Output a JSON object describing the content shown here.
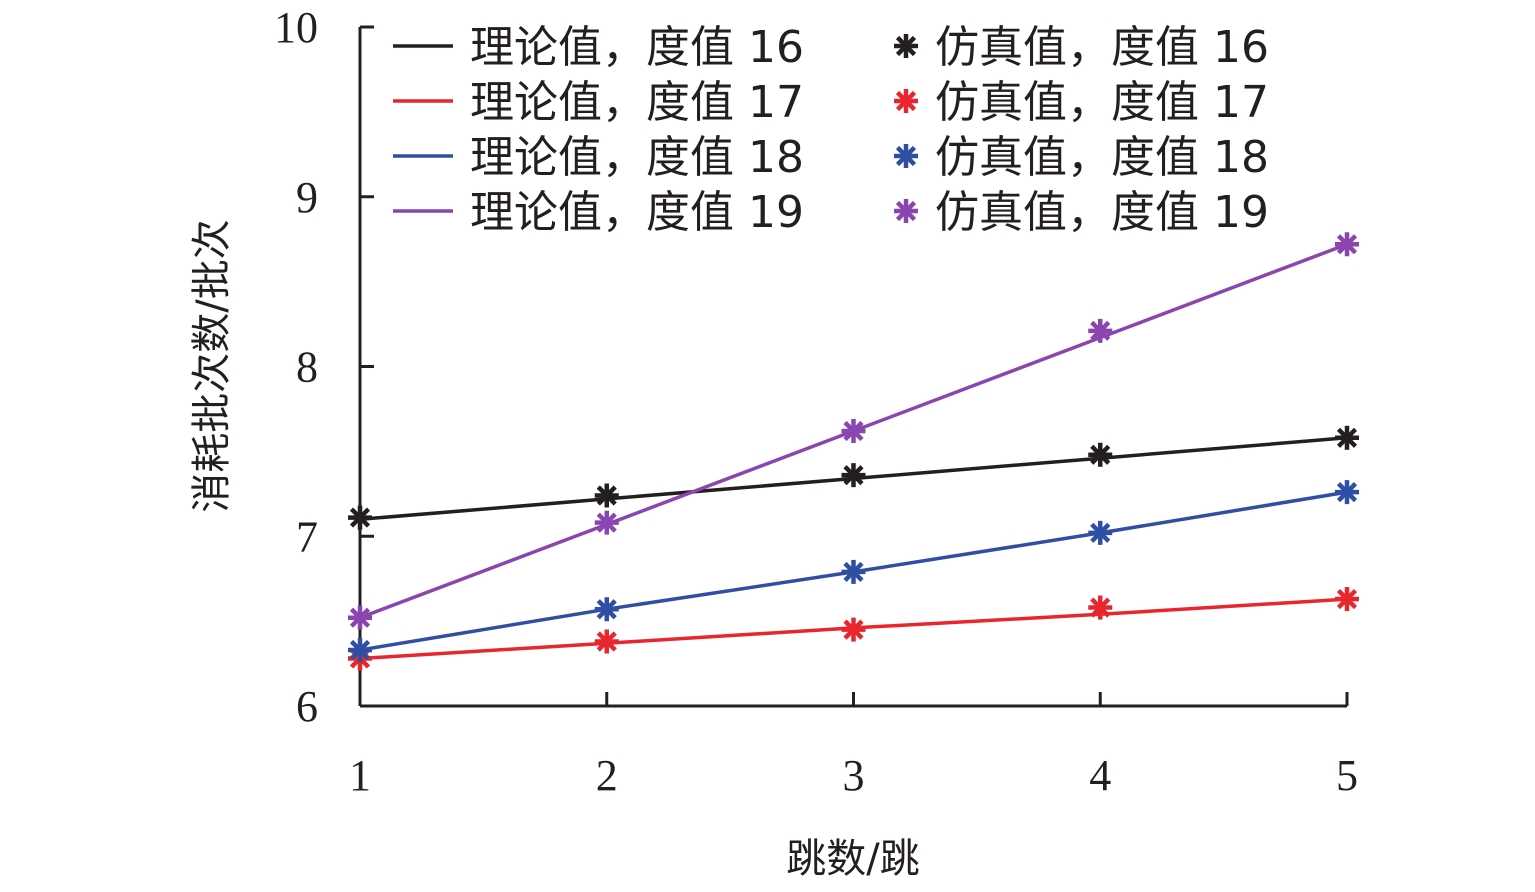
{
  "chart_data": {
    "type": "line",
    "xlabel": "跳数/跳",
    "ylabel": "消耗批次数/批次",
    "x": [
      1,
      2,
      3,
      4,
      5
    ],
    "xlim": [
      1,
      5
    ],
    "ylim": [
      6,
      10
    ],
    "xticks": [
      "1",
      "2",
      "3",
      "4",
      "5"
    ],
    "yticks": [
      "6",
      "7",
      "8",
      "9",
      "10"
    ],
    "grid": false,
    "legend_position": "top",
    "series": [
      {
        "name": "理论值，度值 16",
        "kind": "line",
        "color": "#231f20",
        "values": [
          7.1,
          7.22,
          7.34,
          7.46,
          7.58
        ]
      },
      {
        "name": "理论值，度值 17",
        "kind": "line",
        "color": "#e8262d",
        "values": [
          6.28,
          6.37,
          6.46,
          6.54,
          6.63
        ]
      },
      {
        "name": "理论值，度值 18",
        "kind": "line",
        "color": "#2e4fa3",
        "values": [
          6.33,
          6.57,
          6.79,
          7.02,
          7.26
        ]
      },
      {
        "name": "理论值，度值 19",
        "kind": "line",
        "color": "#8a45b0",
        "values": [
          6.52,
          7.07,
          7.62,
          8.17,
          8.72
        ]
      },
      {
        "name": "仿真值，度值 16",
        "kind": "marker",
        "color": "#231f20",
        "values": [
          7.11,
          7.24,
          7.36,
          7.48,
          7.58
        ]
      },
      {
        "name": "仿真值，度值 17",
        "kind": "marker",
        "color": "#e8262d",
        "values": [
          6.28,
          6.38,
          6.45,
          6.58,
          6.63
        ]
      },
      {
        "name": "仿真值，度值 18",
        "kind": "marker",
        "color": "#2e4fa3",
        "values": [
          6.33,
          6.57,
          6.79,
          7.02,
          7.26
        ]
      },
      {
        "name": "仿真值，度值 19",
        "kind": "marker",
        "color": "#8a45b0",
        "values": [
          6.52,
          7.08,
          7.62,
          8.21,
          8.72
        ]
      }
    ]
  }
}
